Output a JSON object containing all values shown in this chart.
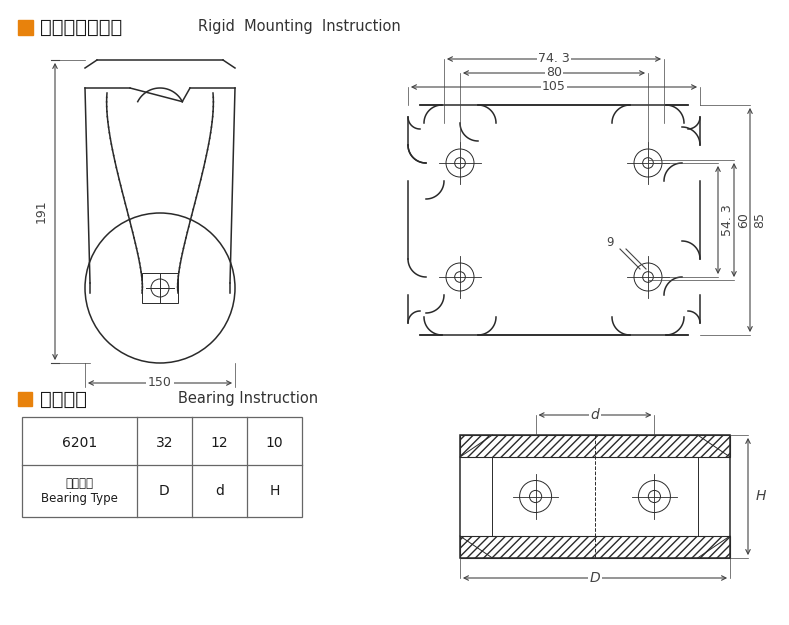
{
  "bg_color": "#ffffff",
  "title1_zh": "定向安装尺寸图",
  "title1_en": "Rigid  Mounting  Instruction",
  "title2_zh": "轴承说明",
  "title2_en": "Bearing Instruction",
  "orange_color": "#E8820C",
  "line_color": "#2a2a2a",
  "dim_color": "#444444",
  "table_headers_line1": "轴承型号",
  "table_headers_line2": "Bearing Type",
  "table_col2": "D",
  "table_col3": "d",
  "table_col4": "H",
  "table_val1": "6201",
  "table_val2": "32",
  "table_val3": "12",
  "table_val4": "10",
  "dim_191": "191",
  "dim_150": "150",
  "dim_105": "105",
  "dim_80": "80",
  "dim_743": "74. 3",
  "dim_543": "54. 3",
  "dim_60": "60",
  "dim_85": "85",
  "dim_9": "9"
}
